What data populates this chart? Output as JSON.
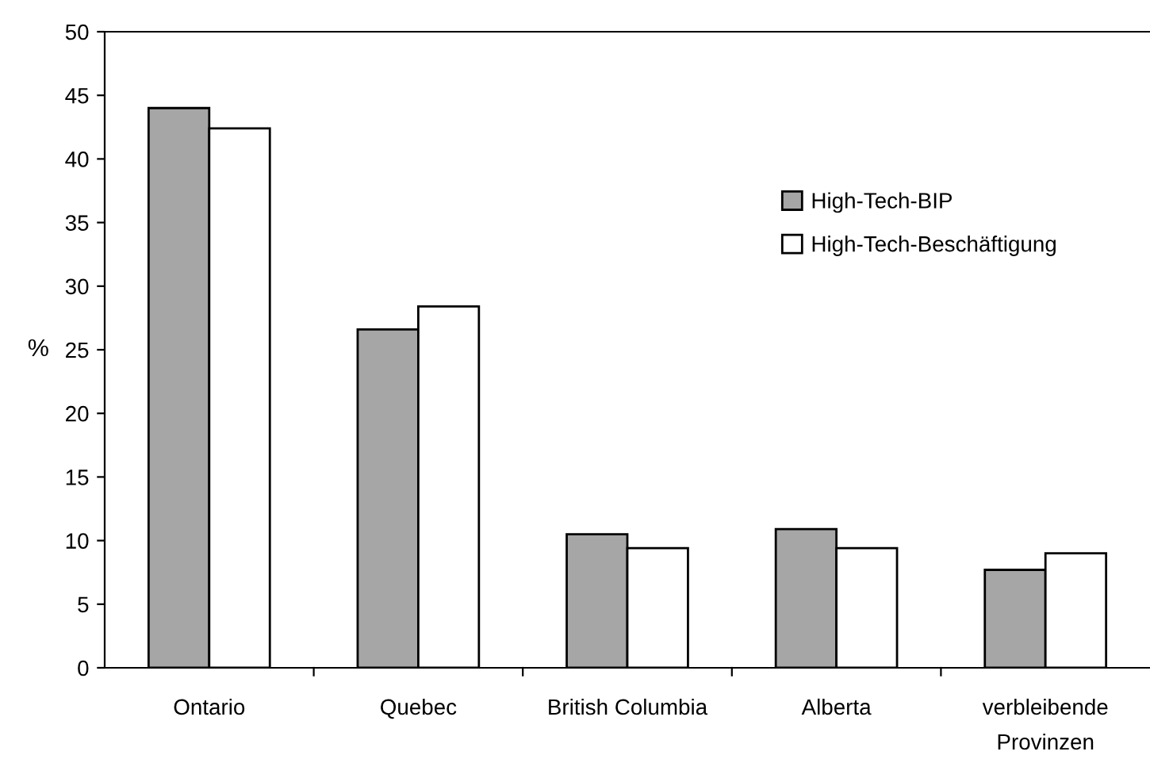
{
  "chart_data": {
    "type": "bar",
    "ylabel": "%",
    "categories": [
      "Ontario",
      "Quebec",
      "British Columbia",
      "Alberta",
      "verbleibende\nProvinzen"
    ],
    "series": [
      {
        "name": "High-Tech-BIP",
        "color": "#a6a6a6",
        "values": [
          44.0,
          26.6,
          10.5,
          10.9,
          7.7
        ]
      },
      {
        "name": "High-Tech-Beschäftigung",
        "color": "#ffffff",
        "values": [
          42.4,
          28.4,
          9.4,
          9.4,
          9.0
        ]
      }
    ],
    "ylim": [
      0,
      50
    ],
    "yticks": [
      0,
      5,
      10,
      15,
      20,
      25,
      30,
      35,
      40,
      45,
      50
    ],
    "grid": false,
    "legend": "top right"
  }
}
